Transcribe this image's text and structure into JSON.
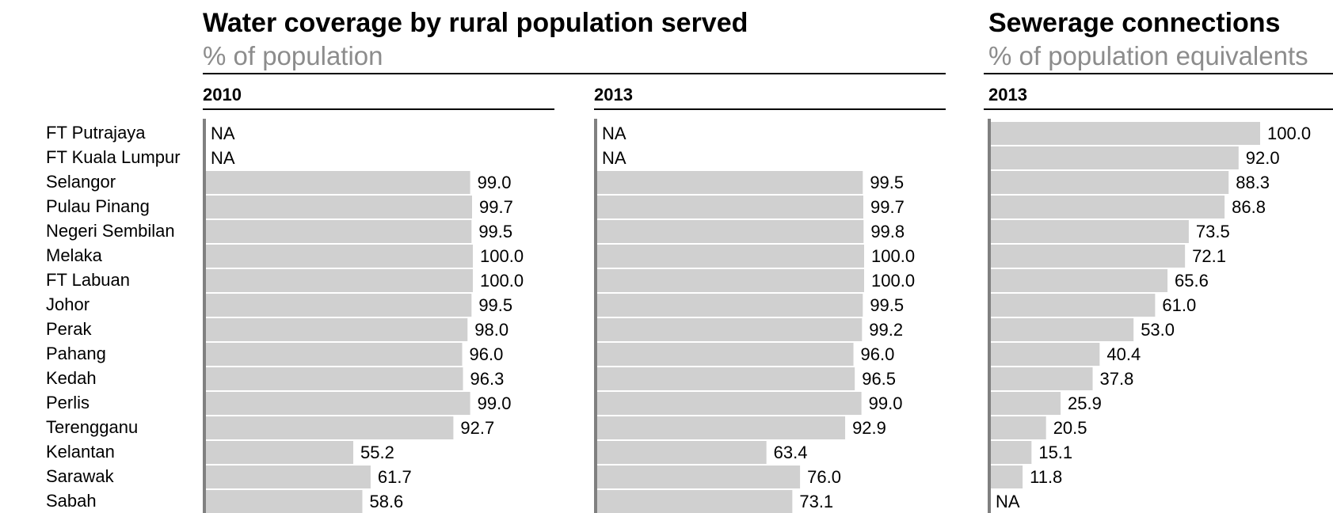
{
  "headers": {
    "water": {
      "title": "Water coverage by rural population served",
      "subtitle": "% of population"
    },
    "sewerage": {
      "title": "Sewerage connections",
      "subtitle": "% of population equivalents"
    }
  },
  "colors": {
    "bar": "#d0d0d0",
    "axis": "#808080",
    "title": "#000000",
    "subtitle": "#8c8c8c"
  },
  "chart_data": [
    {
      "type": "bar",
      "orientation": "horizontal",
      "title": "Water coverage by rural population served",
      "subtitle": "% of population",
      "panel": "2010",
      "categories": [
        "FT Putrajaya",
        "FT Kuala Lumpur",
        "Selangor",
        "Pulau Pinang",
        "Negeri Sembilan",
        "Melaka",
        "FT Labuan",
        "Johor",
        "Perak",
        "Pahang",
        "Kedah",
        "Perlis",
        "Terengganu",
        "Kelantan",
        "Sarawak",
        "Sabah"
      ],
      "values": [
        null,
        null,
        99.0,
        99.7,
        99.5,
        100.0,
        100.0,
        99.5,
        98.0,
        96.0,
        96.3,
        99.0,
        92.7,
        55.2,
        61.7,
        58.6
      ],
      "labels": [
        "NA",
        "NA",
        "99.0",
        "99.7",
        "99.5",
        "100.0",
        "100.0",
        "99.5",
        "98.0",
        "96.0",
        "96.3",
        "99.0",
        "92.7",
        "55.2",
        "61.7",
        "58.6"
      ],
      "xlim": [
        0,
        100
      ]
    },
    {
      "type": "bar",
      "orientation": "horizontal",
      "title": "Water coverage by rural population served",
      "subtitle": "% of population",
      "panel": "2013",
      "categories": [
        "FT Putrajaya",
        "FT Kuala Lumpur",
        "Selangor",
        "Pulau Pinang",
        "Negeri Sembilan",
        "Melaka",
        "FT Labuan",
        "Johor",
        "Perak",
        "Pahang",
        "Kedah",
        "Perlis",
        "Terengganu",
        "Kelantan",
        "Sarawak",
        "Sabah"
      ],
      "values": [
        null,
        null,
        99.5,
        99.7,
        99.8,
        100.0,
        100.0,
        99.5,
        99.2,
        96.0,
        96.5,
        99.0,
        92.9,
        63.4,
        76.0,
        73.1
      ],
      "labels": [
        "NA",
        "NA",
        "99.5",
        "99.7",
        "99.8",
        "100.0",
        "100.0",
        "99.5",
        "99.2",
        "96.0",
        "96.5",
        "99.0",
        "92.9",
        "63.4",
        "76.0",
        "73.1"
      ],
      "xlim": [
        0,
        100
      ]
    },
    {
      "type": "bar",
      "orientation": "horizontal",
      "title": "Sewerage connections",
      "subtitle": "% of population equivalents",
      "panel": "2013",
      "categories": [
        "FT Putrajaya",
        "FT Kuala Lumpur",
        "Selangor",
        "Pulau Pinang",
        "Negeri Sembilan",
        "Melaka",
        "FT Labuan",
        "Johor",
        "Perak",
        "Pahang",
        "Kedah",
        "Perlis",
        "Terengganu",
        "Kelantan",
        "Sarawak",
        "Sabah"
      ],
      "values": [
        100.0,
        92.0,
        88.3,
        86.8,
        73.5,
        72.1,
        65.6,
        61.0,
        53.0,
        40.4,
        37.8,
        25.9,
        20.5,
        15.1,
        11.8,
        null
      ],
      "labels": [
        "100.0",
        "92.0",
        "88.3",
        "86.8",
        "73.5",
        "72.1",
        "65.6",
        "61.0",
        "53.0",
        "40.4",
        "37.8",
        "25.9",
        "20.5",
        "15.1",
        "11.8",
        "NA"
      ],
      "xlim": [
        0,
        100
      ]
    }
  ]
}
